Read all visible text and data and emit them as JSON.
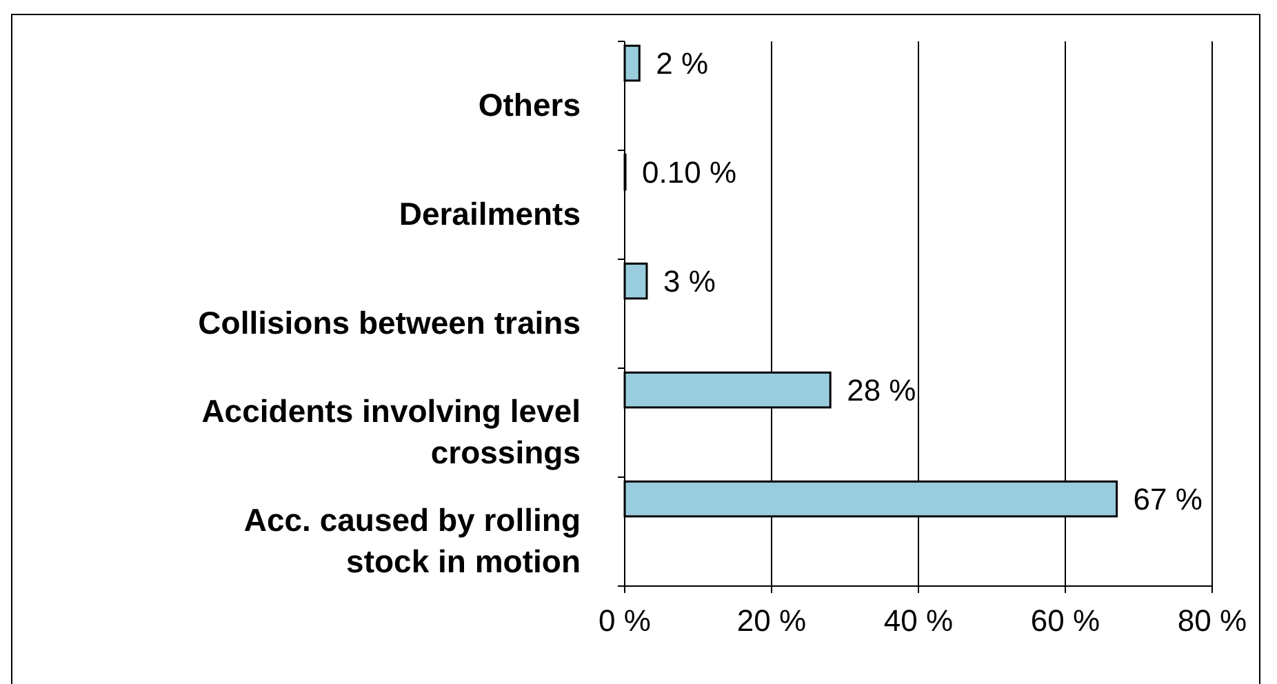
{
  "chart_data": {
    "type": "bar",
    "orientation": "horizontal",
    "categories": [
      "Others",
      "Derailments",
      "Collisions between trains",
      "Accidents involving level crossings",
      "Acc. caused by rolling stock in motion"
    ],
    "values": [
      2,
      0.1,
      3,
      28,
      67
    ],
    "value_labels": [
      "2 %",
      "0.10 %",
      "3 %",
      "28 %",
      "67 %"
    ],
    "color": "#99ccdd",
    "xlim": [
      0,
      80
    ],
    "xticks": [
      {
        "value": 0,
        "label": "0 %"
      },
      {
        "value": 20,
        "label": "20 %"
      },
      {
        "value": 40,
        "label": "40 %"
      },
      {
        "value": 60,
        "label": "60 %"
      },
      {
        "value": 80,
        "label": "80 %"
      }
    ],
    "grid": "x"
  }
}
